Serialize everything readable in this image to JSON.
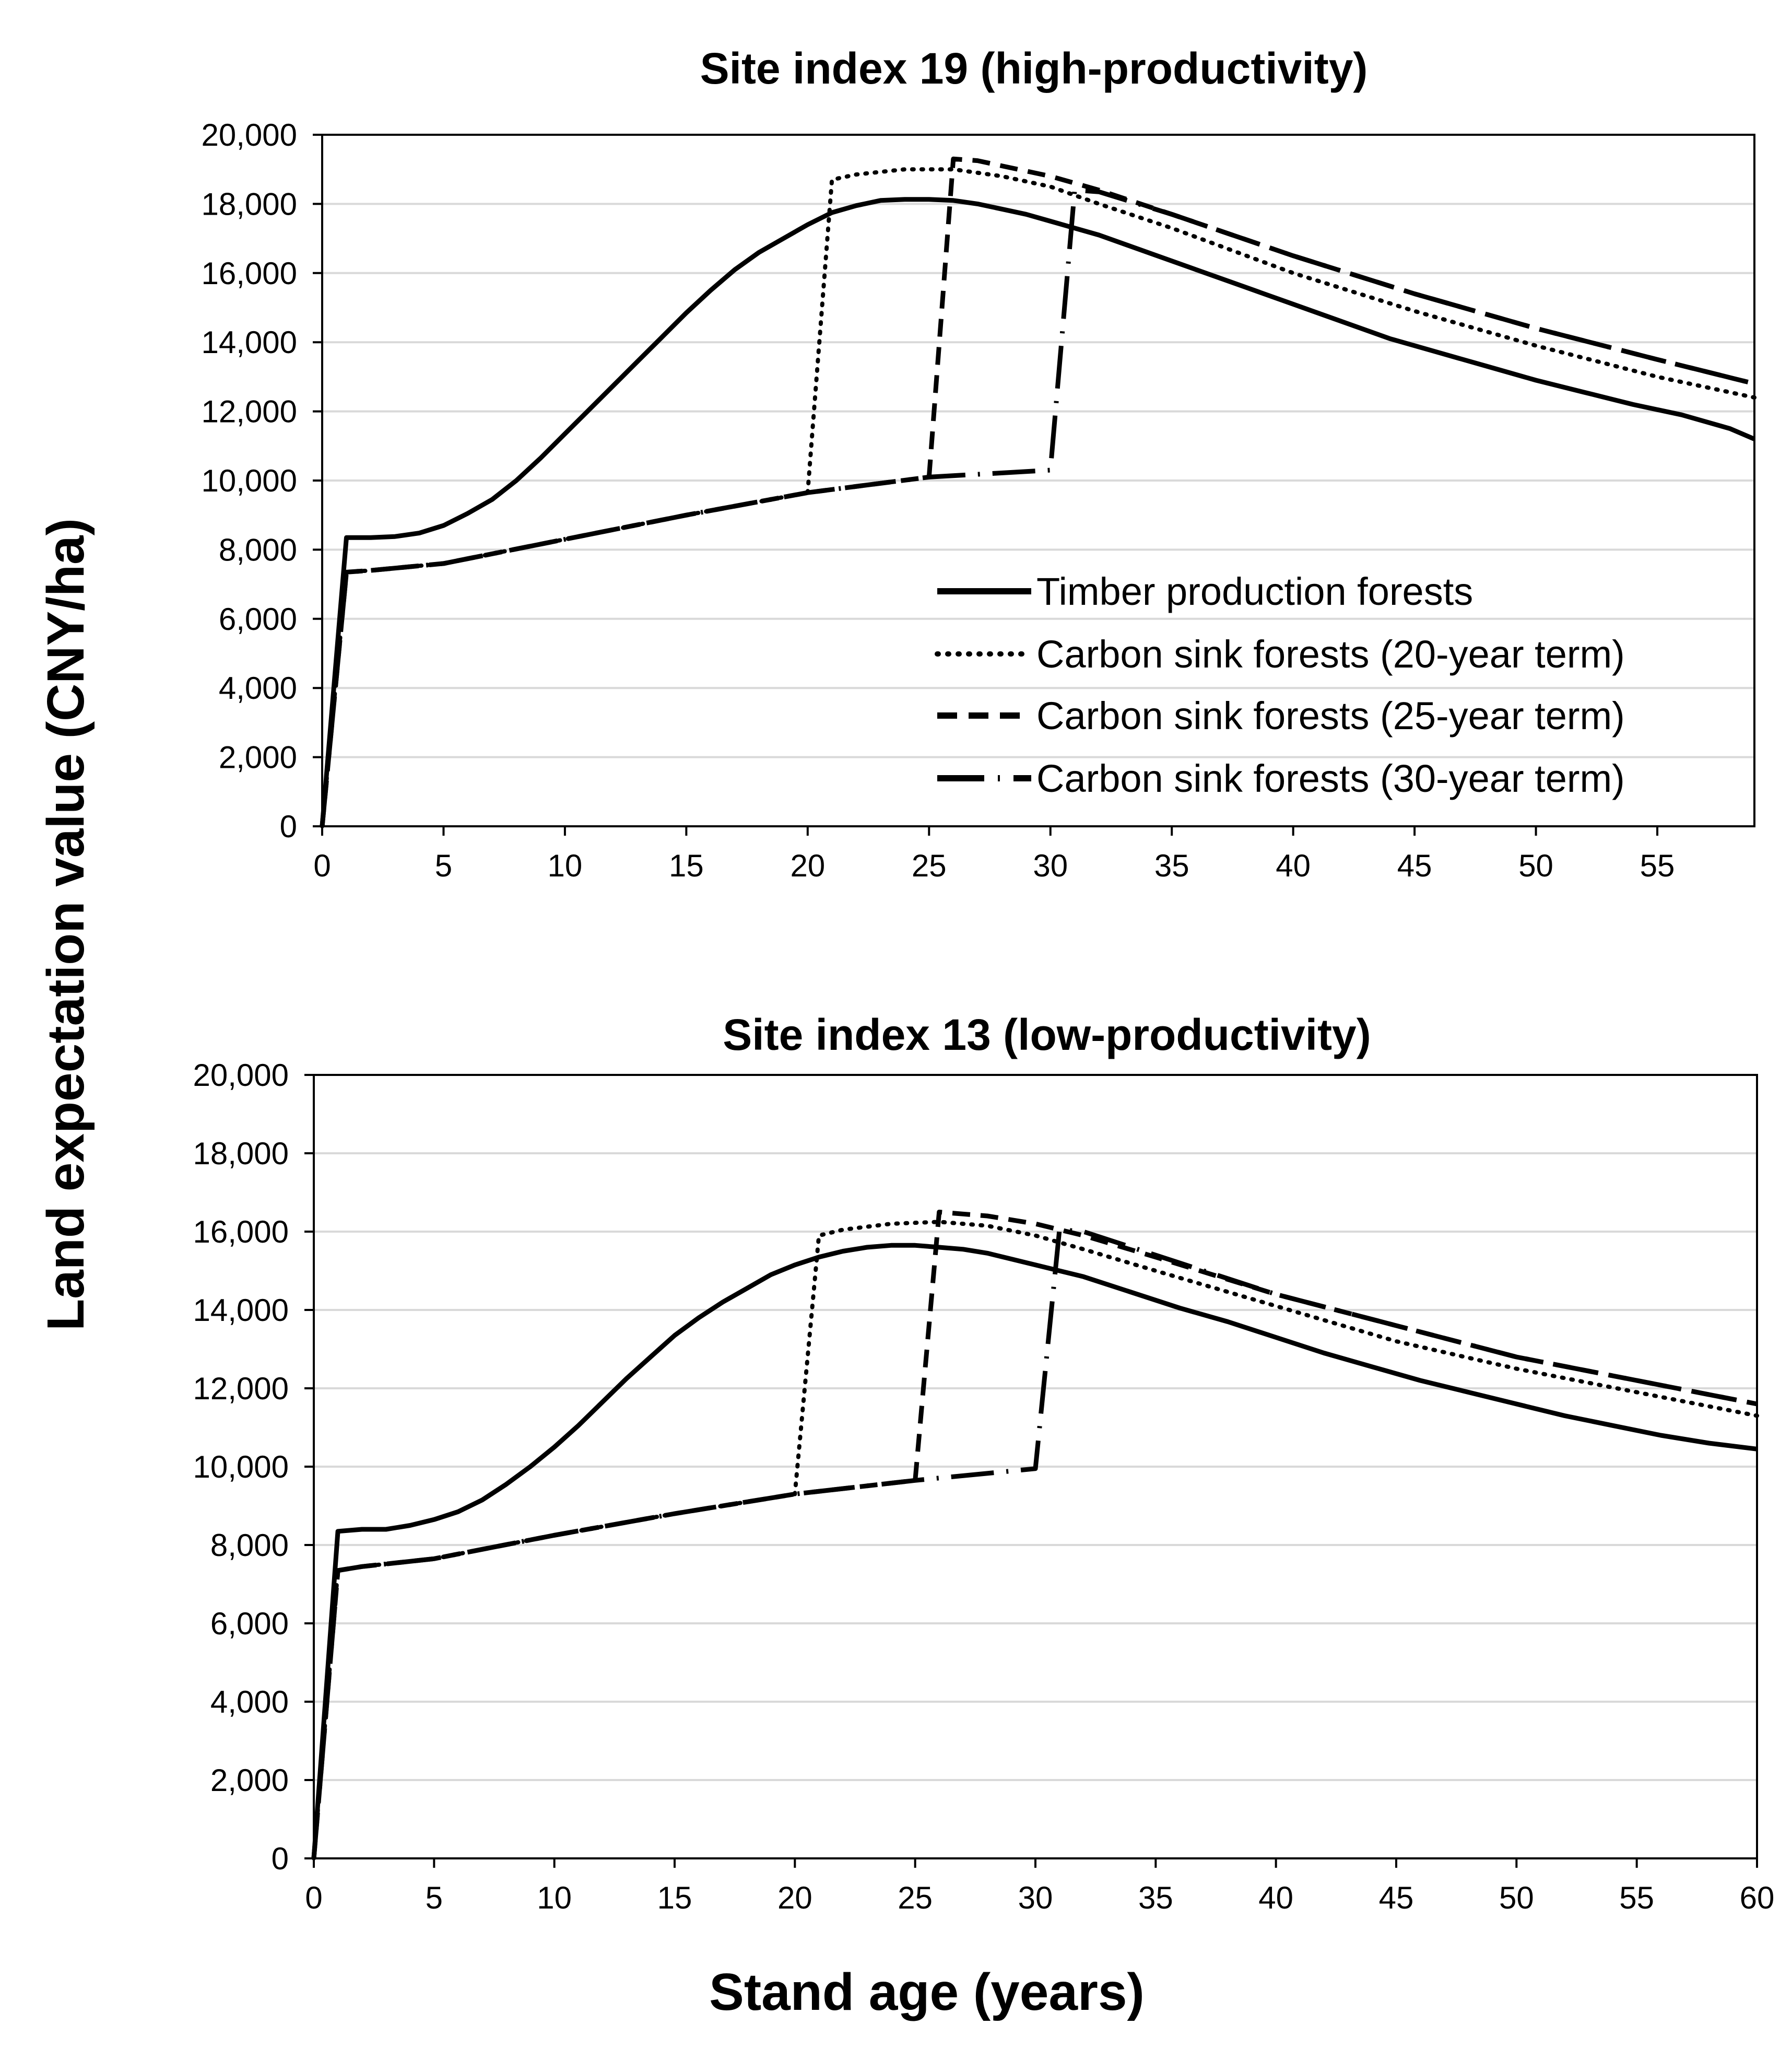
{
  "figure": {
    "ylabel": "Land expectation value (CNY/ha)",
    "xlabel": "Stand age (years)"
  },
  "chart_data": [
    {
      "type": "line",
      "title": "Site index 19 (high-productivity)",
      "xlabel": "Stand age (years)",
      "ylabel": "Land expectation value (CNY/ha)",
      "xlim": [
        0,
        59
      ],
      "ylim": [
        0,
        20000
      ],
      "xticks": [
        0,
        5,
        10,
        15,
        20,
        25,
        30,
        35,
        40,
        45,
        50,
        55
      ],
      "xtick_labels": [
        "0",
        "5",
        "10",
        "15",
        "20",
        "25",
        "30",
        "35",
        "40",
        "45",
        "50",
        "55"
      ],
      "yticks": [
        0,
        2000,
        4000,
        6000,
        8000,
        10000,
        12000,
        14000,
        16000,
        18000,
        20000
      ],
      "ytick_labels": [
        "0",
        "2,000",
        "4,000",
        "6,000",
        "8,000",
        "10,000",
        "12,000",
        "14,000",
        "16,000",
        "18,000",
        "20,000"
      ],
      "grid": true,
      "legend_position": "bottom-right",
      "series": [
        {
          "name": "Timber production forests",
          "style": "solid",
          "x": [
            0,
            1,
            2,
            3,
            4,
            5,
            6,
            7,
            8,
            9,
            10,
            11,
            12,
            13,
            14,
            15,
            16,
            17,
            18,
            19,
            20,
            21,
            22,
            23,
            24,
            25,
            26,
            27,
            28,
            29,
            30,
            32,
            34,
            36,
            38,
            40,
            42,
            44,
            46,
            48,
            50,
            52,
            54,
            56,
            58,
            59
          ],
          "y": [
            0,
            8350,
            8350,
            8380,
            8480,
            8700,
            9050,
            9450,
            10000,
            10650,
            11350,
            12050,
            12750,
            13450,
            14150,
            14850,
            15500,
            16100,
            16600,
            17000,
            17400,
            17750,
            17950,
            18100,
            18130,
            18130,
            18100,
            18000,
            17850,
            17700,
            17500,
            17100,
            16600,
            16100,
            15600,
            15100,
            14600,
            14100,
            13700,
            13300,
            12900,
            12550,
            12200,
            11900,
            11500,
            11200
          ]
        },
        {
          "name": "Carbon sink forests (20-year term)",
          "style": "dotted",
          "x": [
            0,
            1,
            2,
            5,
            10,
            15,
            20,
            21,
            22,
            24,
            26,
            28,
            30,
            32,
            35,
            40,
            45,
            50,
            55,
            59
          ],
          "y": [
            0,
            7350,
            7400,
            7600,
            8300,
            9000,
            9650,
            18700,
            18850,
            19000,
            19000,
            18800,
            18500,
            18000,
            17300,
            16000,
            14900,
            13900,
            13000,
            12400
          ]
        },
        {
          "name": "Carbon sink forests (25-year term)",
          "style": "dashed",
          "x": [
            0,
            1,
            2,
            5,
            10,
            15,
            20,
            25,
            26,
            27,
            28,
            30,
            32,
            35,
            40,
            45,
            50,
            55,
            59
          ],
          "y": [
            0,
            7350,
            7400,
            7600,
            8300,
            9000,
            9650,
            10100,
            19300,
            19250,
            19100,
            18800,
            18400,
            17700,
            16500,
            15400,
            14400,
            13500,
            12800
          ]
        },
        {
          "name": "Carbon sink forests (30-year term)",
          "style": "long-dash",
          "x": [
            0,
            1,
            2,
            5,
            10,
            15,
            20,
            25,
            30,
            31,
            32,
            35,
            40,
            45,
            50,
            55,
            59
          ],
          "y": [
            0,
            7350,
            7400,
            7600,
            8300,
            9000,
            9650,
            10100,
            10300,
            18400,
            18350,
            17700,
            16500,
            15400,
            14400,
            13500,
            12800
          ]
        }
      ]
    },
    {
      "type": "line",
      "title": "Site index 13 (low-productivity)",
      "xlabel": "Stand age (years)",
      "ylabel": "Land expectation value (CNY/ha)",
      "xlim": [
        0,
        60
      ],
      "ylim": [
        0,
        20000
      ],
      "xticks": [
        0,
        5,
        10,
        15,
        20,
        25,
        30,
        35,
        40,
        45,
        50,
        55,
        60
      ],
      "xtick_labels": [
        "0",
        "5",
        "10",
        "15",
        "20",
        "25",
        "30",
        "35",
        "40",
        "45",
        "50",
        "55",
        "60"
      ],
      "yticks": [
        0,
        2000,
        4000,
        6000,
        8000,
        10000,
        12000,
        14000,
        16000,
        18000,
        20000
      ],
      "ytick_labels": [
        "0",
        "2,000",
        "4,000",
        "6,000",
        "8,000",
        "10,000",
        "12,000",
        "14,000",
        "16,000",
        "18,000",
        "20,000"
      ],
      "grid": true,
      "series": [
        {
          "name": "Timber production forests",
          "style": "solid",
          "x": [
            0,
            1,
            2,
            3,
            4,
            5,
            6,
            7,
            8,
            9,
            10,
            11,
            12,
            13,
            14,
            15,
            16,
            17,
            18,
            19,
            20,
            21,
            22,
            23,
            24,
            25,
            26,
            27,
            28,
            29,
            30,
            32,
            34,
            36,
            38,
            40,
            42,
            44,
            46,
            48,
            50,
            52,
            54,
            56,
            58,
            60
          ],
          "y": [
            0,
            8350,
            8400,
            8400,
            8500,
            8650,
            8850,
            9150,
            9550,
            10000,
            10500,
            11050,
            11650,
            12250,
            12800,
            13350,
            13800,
            14200,
            14550,
            14900,
            15150,
            15350,
            15500,
            15600,
            15650,
            15650,
            15600,
            15550,
            15450,
            15300,
            15150,
            14850,
            14450,
            14050,
            13700,
            13300,
            12900,
            12550,
            12200,
            11900,
            11600,
            11300,
            11050,
            10800,
            10600,
            10450
          ]
        },
        {
          "name": "Carbon sink forests (20-year term)",
          "style": "dotted",
          "x": [
            0,
            1,
            2,
            5,
            10,
            15,
            20,
            21,
            22,
            24,
            26,
            28,
            30,
            32,
            35,
            40,
            45,
            50,
            55,
            60
          ],
          "y": [
            0,
            7350,
            7450,
            7650,
            8250,
            8800,
            9300,
            15900,
            16050,
            16200,
            16250,
            16150,
            15900,
            15550,
            15000,
            14100,
            13200,
            12500,
            11900,
            11300
          ]
        },
        {
          "name": "Carbon sink forests (25-year term)",
          "style": "dashed",
          "x": [
            0,
            1,
            2,
            5,
            10,
            15,
            20,
            25,
            26,
            27,
            28,
            30,
            32,
            35,
            40,
            45,
            50,
            55,
            60
          ],
          "y": [
            0,
            7350,
            7450,
            7650,
            8250,
            8800,
            9300,
            9650,
            16500,
            16450,
            16400,
            16200,
            15900,
            15350,
            14400,
            13600,
            12800,
            12200,
            11600
          ]
        },
        {
          "name": "Carbon sink forests (30-year term)",
          "style": "long-dash",
          "x": [
            0,
            1,
            2,
            5,
            10,
            15,
            20,
            25,
            30,
            31,
            32,
            35,
            40,
            45,
            50,
            55,
            60
          ],
          "y": [
            0,
            7350,
            7450,
            7650,
            8250,
            8800,
            9300,
            9650,
            9950,
            16050,
            16000,
            15400,
            14400,
            13600,
            12800,
            12200,
            11600
          ]
        }
      ]
    }
  ]
}
